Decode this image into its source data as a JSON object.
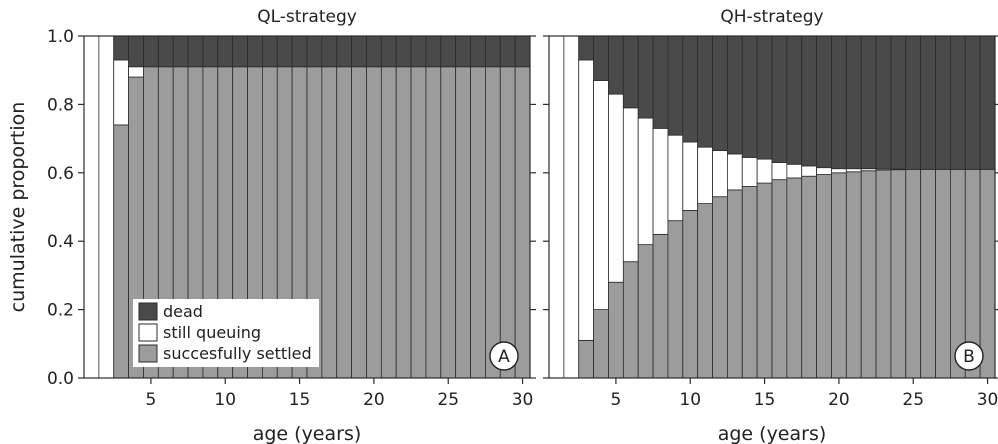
{
  "figure": {
    "ylabel": "cumulative proportion",
    "colors": {
      "dead": "#4a4a4a",
      "queuing": "#ffffff",
      "settled": "#9c9c9c",
      "edge": "#2b2b2b"
    }
  },
  "chart_data": [
    {
      "type": "bar",
      "stacked": true,
      "title": "QL-strategy",
      "panel_label": "A",
      "xlabel": "age (years)",
      "ylabel": "cumulative proportion",
      "ylim": [
        0,
        1.0
      ],
      "xlim": [
        0.5,
        30.5
      ],
      "xticks": [
        5,
        10,
        15,
        20,
        25,
        30
      ],
      "yticks": [
        0.0,
        0.2,
        0.4,
        0.6,
        0.8,
        1.0
      ],
      "ytick_labels": [
        "0.0",
        "0.2",
        "0.4",
        "0.6",
        "0.8",
        "1.0"
      ],
      "legend": {
        "placement": "bottom-left",
        "entries": [
          {
            "label": "dead",
            "color": "#4a4a4a"
          },
          {
            "label": "still queuing",
            "color": "#ffffff"
          },
          {
            "label": "succesfully settled",
            "color": "#9c9c9c"
          }
        ]
      },
      "x": [
        1,
        2,
        3,
        4,
        5,
        6,
        7,
        8,
        9,
        10,
        11,
        12,
        13,
        14,
        15,
        16,
        17,
        18,
        19,
        20,
        21,
        22,
        23,
        24,
        25,
        26,
        27,
        28,
        29,
        30
      ],
      "series": [
        {
          "name": "succesfully settled",
          "values": [
            0,
            0,
            0.74,
            0.88,
            0.91,
            0.91,
            0.91,
            0.91,
            0.91,
            0.91,
            0.91,
            0.91,
            0.91,
            0.91,
            0.91,
            0.91,
            0.91,
            0.91,
            0.91,
            0.91,
            0.91,
            0.91,
            0.91,
            0.91,
            0.91,
            0.91,
            0.91,
            0.91,
            0.91,
            0.91
          ]
        },
        {
          "name": "still queuing",
          "values": [
            1,
            1,
            0.19,
            0.03,
            0,
            0,
            0,
            0,
            0,
            0,
            0,
            0,
            0,
            0,
            0,
            0,
            0,
            0,
            0,
            0,
            0,
            0,
            0,
            0,
            0,
            0,
            0,
            0,
            0,
            0
          ]
        },
        {
          "name": "dead",
          "values": [
            0,
            0,
            0.07,
            0.09,
            0.09,
            0.09,
            0.09,
            0.09,
            0.09,
            0.09,
            0.09,
            0.09,
            0.09,
            0.09,
            0.09,
            0.09,
            0.09,
            0.09,
            0.09,
            0.09,
            0.09,
            0.09,
            0.09,
            0.09,
            0.09,
            0.09,
            0.09,
            0.09,
            0.09,
            0.09
          ]
        }
      ]
    },
    {
      "type": "bar",
      "stacked": true,
      "title": "QH-strategy",
      "panel_label": "B",
      "xlabel": "age (years)",
      "ylim": [
        0,
        1.0
      ],
      "xlim": [
        0.5,
        30.5
      ],
      "xticks": [
        5,
        10,
        15,
        20,
        25,
        30
      ],
      "yticks": [
        0.0,
        0.2,
        0.4,
        0.6,
        0.8,
        1.0
      ],
      "x": [
        1,
        2,
        3,
        4,
        5,
        6,
        7,
        8,
        9,
        10,
        11,
        12,
        13,
        14,
        15,
        16,
        17,
        18,
        19,
        20,
        21,
        22,
        23,
        24,
        25,
        26,
        27,
        28,
        29,
        30
      ],
      "series": [
        {
          "name": "succesfully settled",
          "values": [
            0,
            0,
            0.11,
            0.2,
            0.28,
            0.34,
            0.39,
            0.42,
            0.46,
            0.49,
            0.51,
            0.53,
            0.55,
            0.56,
            0.57,
            0.58,
            0.585,
            0.59,
            0.595,
            0.6,
            0.603,
            0.606,
            0.608,
            0.609,
            0.61,
            0.61,
            0.61,
            0.61,
            0.61,
            0.61
          ]
        },
        {
          "name": "still queuing",
          "values": [
            1,
            1,
            0.82,
            0.67,
            0.55,
            0.45,
            0.37,
            0.31,
            0.25,
            0.2,
            0.165,
            0.135,
            0.105,
            0.085,
            0.07,
            0.05,
            0.04,
            0.03,
            0.02,
            0.012,
            0.009,
            0.006,
            0.003,
            0.002,
            0,
            0,
            0,
            0,
            0,
            0
          ]
        },
        {
          "name": "dead",
          "values": [
            0,
            0,
            0.07,
            0.13,
            0.17,
            0.21,
            0.24,
            0.27,
            0.29,
            0.31,
            0.325,
            0.335,
            0.345,
            0.355,
            0.36,
            0.37,
            0.375,
            0.38,
            0.385,
            0.388,
            0.388,
            0.388,
            0.389,
            0.389,
            0.39,
            0.39,
            0.39,
            0.39,
            0.39,
            0.39
          ]
        }
      ]
    }
  ]
}
